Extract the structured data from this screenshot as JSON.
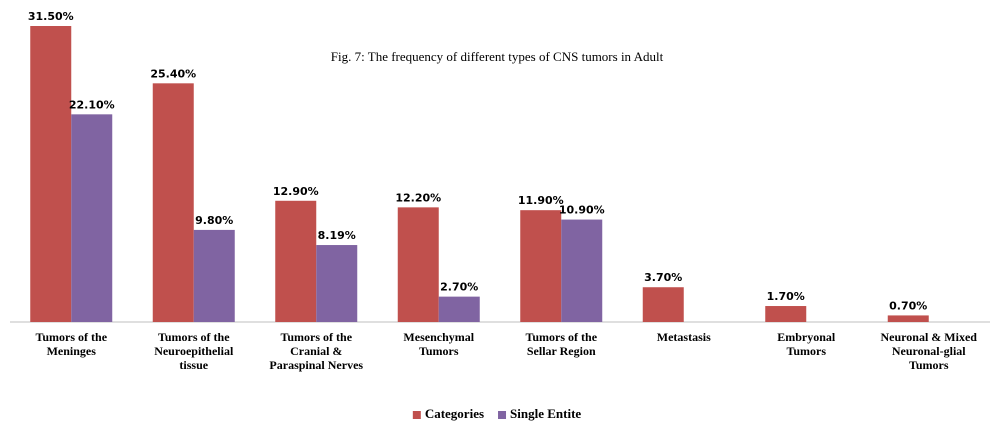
{
  "chart_data": {
    "type": "bar",
    "title": "Fig. 7: The frequency of different types of CNS tumors in Adult",
    "categories": [
      "Tumors of the\nMeninges",
      "Tumors of the\nNeuroepithelial\ntissue",
      "Tumors of the\nCranial &\nParaspinal Nerves",
      "Mesenchymal\nTumors",
      "Tumors of the\nSellar Region",
      "Metastasis",
      "Embryonal\nTumors",
      "Neuronal & Mixed\nNeuronal-glial\nTumors"
    ],
    "series": [
      {
        "name": "Categories",
        "color": "#c0504d",
        "values": [
          31.5,
          25.4,
          12.9,
          12.2,
          11.9,
          3.7,
          1.7,
          0.7
        ],
        "value_labels": [
          "31.50%",
          "25.40%",
          "12.90%",
          "12.20%",
          "11.90%",
          "3.70%",
          "1.70%",
          "0.70%"
        ]
      },
      {
        "name": "Single Entite",
        "color": "#8064a2",
        "values": [
          22.1,
          9.8,
          8.19,
          2.7,
          10.9,
          null,
          null,
          null
        ],
        "value_labels": [
          "22.10%",
          "9.80%",
          "8.19%",
          "2.70%",
          "10.90%",
          null,
          null,
          null
        ]
      }
    ],
    "ylim": [
      0,
      31.5
    ],
    "legend": "bottom"
  }
}
